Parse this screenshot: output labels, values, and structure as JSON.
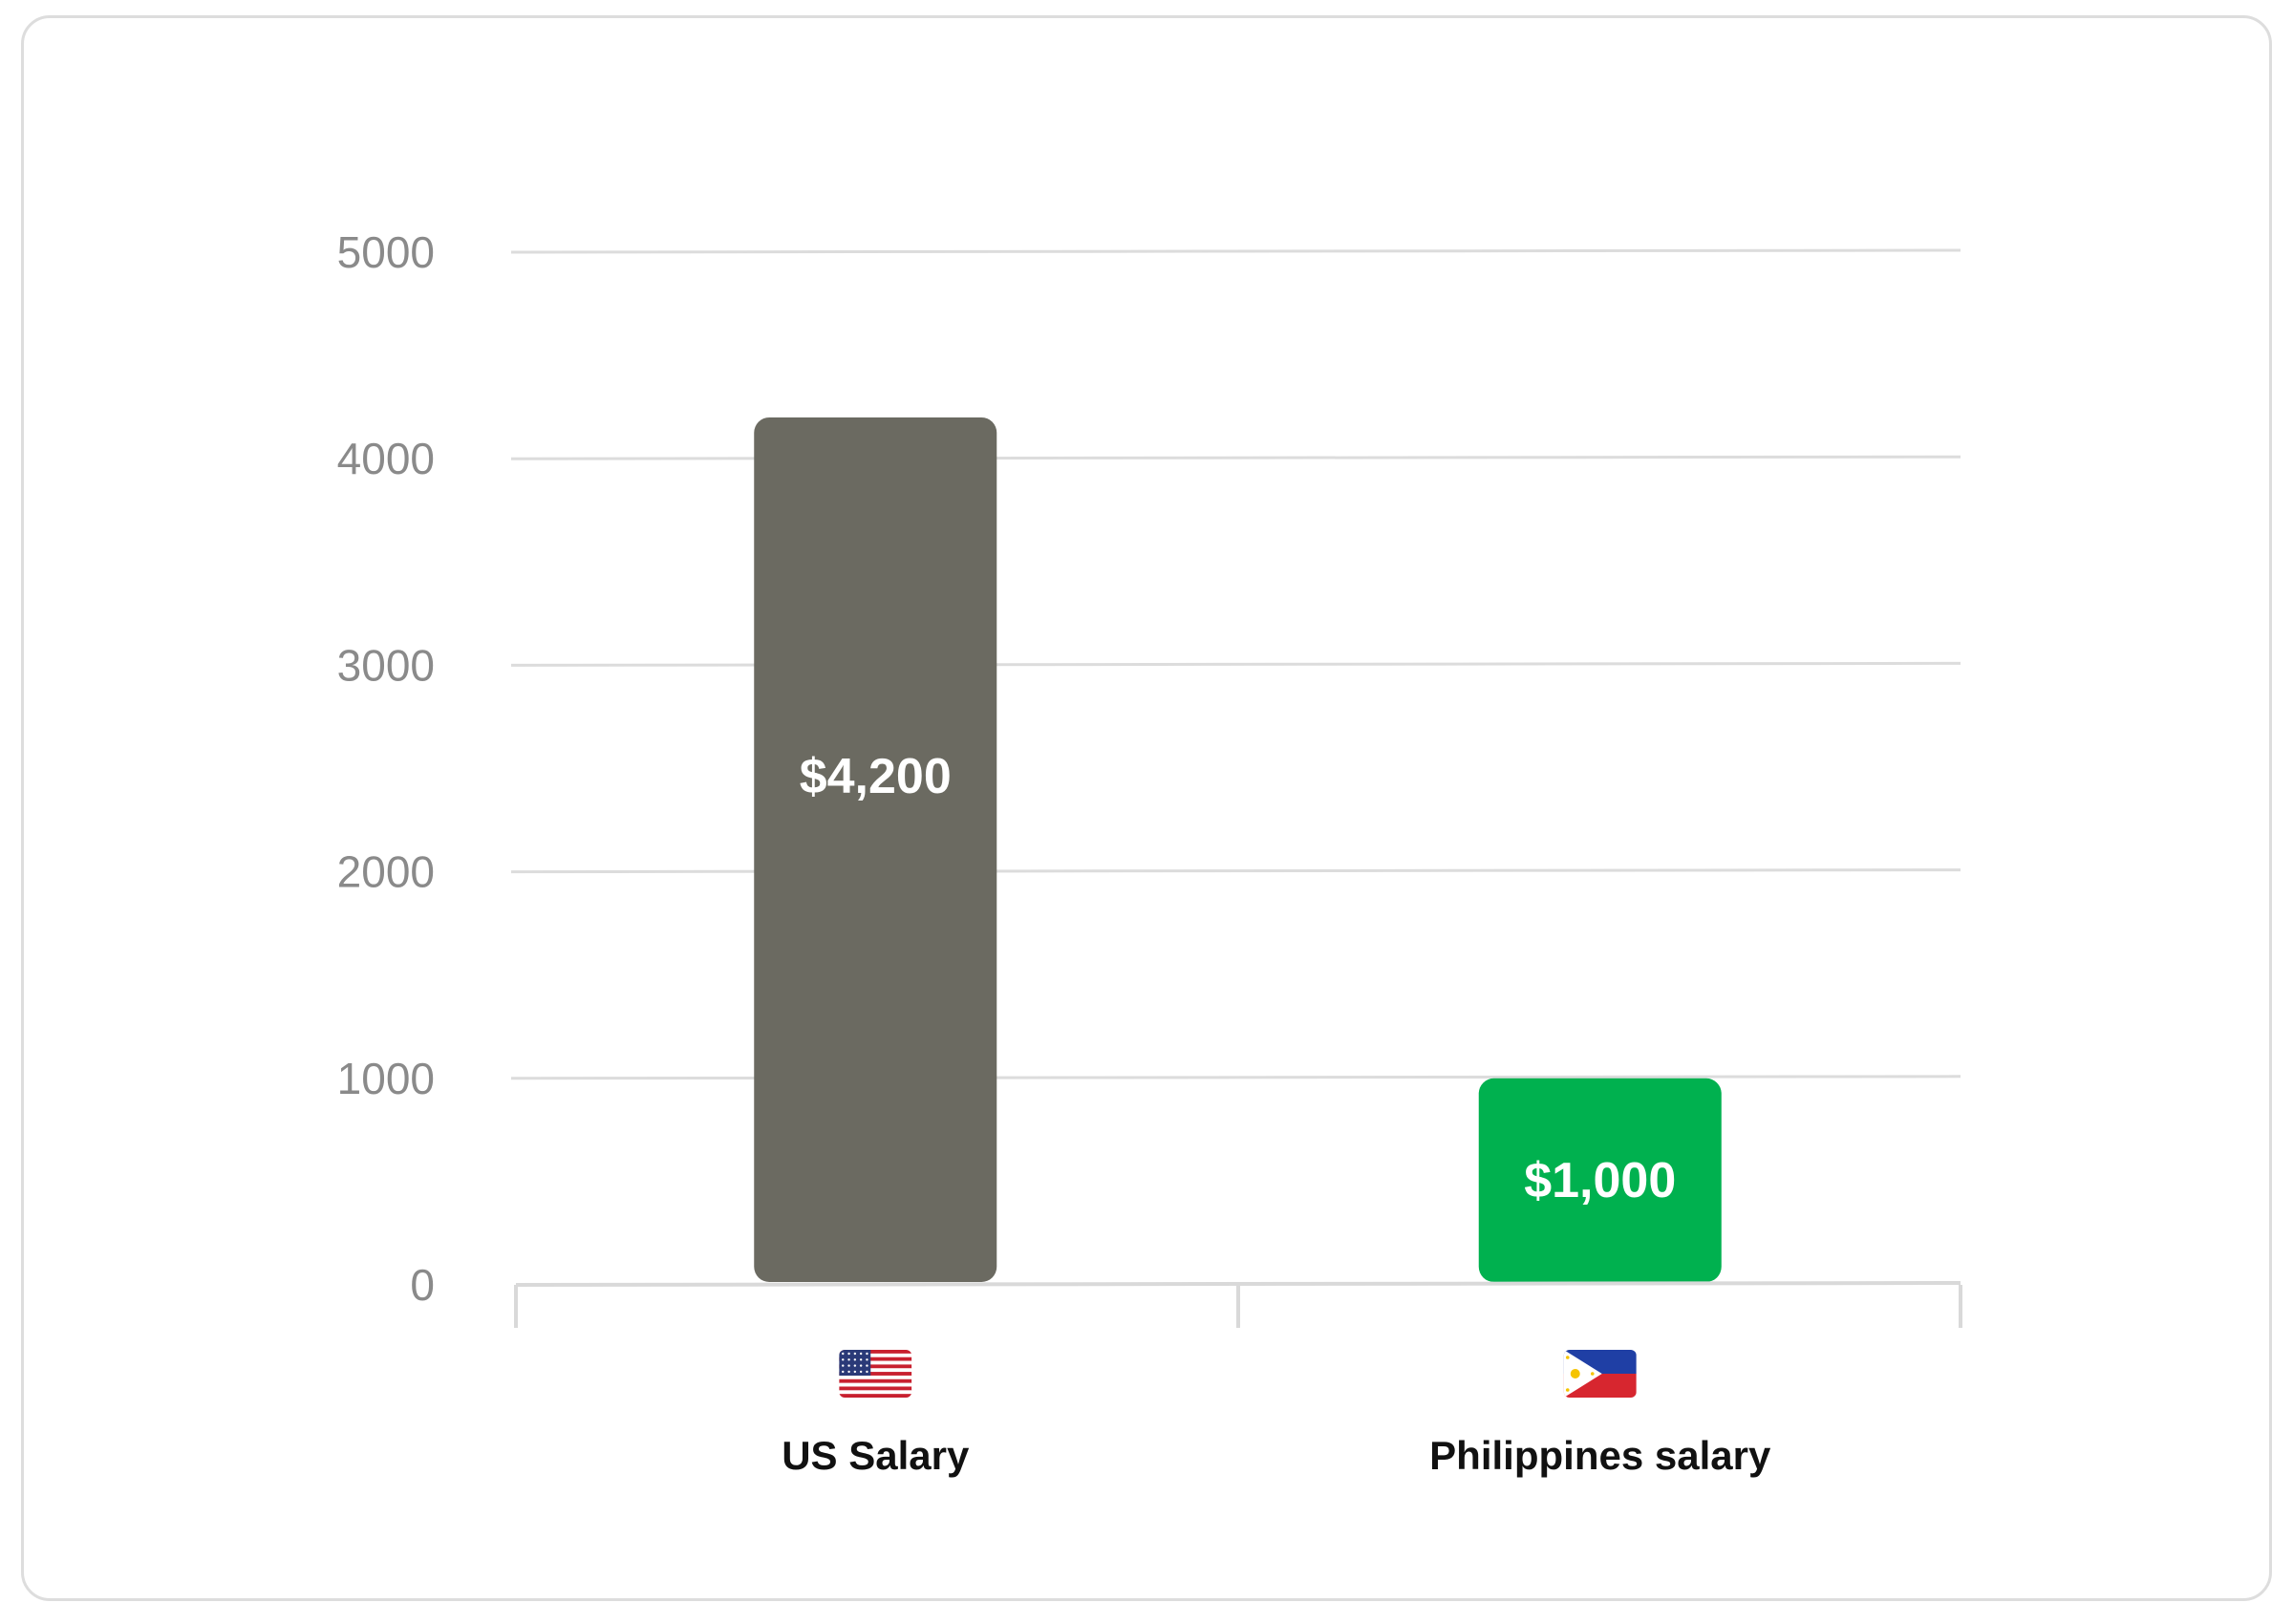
{
  "chart_data": {
    "type": "bar",
    "categories": [
      "US Salary",
      "Philippines salary"
    ],
    "values": [
      4200,
      1000
    ],
    "value_labels": [
      "$4,200",
      "$1,000"
    ],
    "category_icons": [
      "us-flag-icon",
      "philippines-flag-icon"
    ],
    "colors": [
      "#6b6a61",
      "#00b14f"
    ],
    "ylim": [
      0,
      5000
    ],
    "yticks": [
      0,
      1000,
      2000,
      3000,
      4000,
      5000
    ],
    "grid": true,
    "title": "",
    "xlabel": "",
    "ylabel": ""
  }
}
